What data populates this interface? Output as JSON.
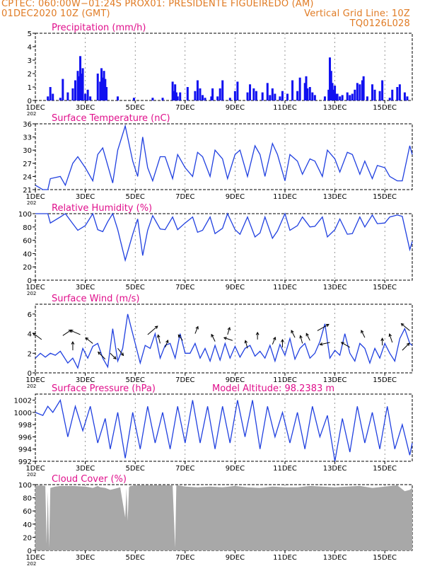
{
  "header": {
    "line1_left": "CPTEC:   060:00W−01:24S   PROX01: PRESIDENTE FIGUEIREDO (AM)",
    "line2_left": "01DEC2020 10Z (GMT)",
    "line2_right": "Vertical Grid Line: 10Z",
    "line3_right": "TQ0126L028"
  },
  "colors": {
    "header": "#e07b24",
    "title": "#e0108c",
    "line": "#2040e0",
    "bar": "#1010f0",
    "cloud": "#a8a8a8"
  },
  "x_axis": {
    "tick_labels": [
      "1DEC",
      "3DEC",
      "5DEC",
      "7DEC",
      "9DEC",
      "11DEC",
      "13DEC",
      "15DEC"
    ],
    "tick_days": [
      1,
      3,
      5,
      7,
      9,
      11,
      13,
      15
    ],
    "range": [
      1,
      16.1
    ],
    "year_fragment": "202"
  },
  "chart_data": [
    {
      "type": "bar",
      "title": "Precipitation (mm/h)",
      "ylim": [
        0,
        5
      ],
      "yticks": [
        "0",
        "1",
        "2",
        "3",
        "4",
        "5"
      ],
      "x": [
        1.5,
        1.6,
        1.7,
        2.0,
        2.1,
        2.3,
        2.5,
        2.6,
        2.7,
        2.75,
        2.8,
        2.85,
        2.9,
        3.0,
        3.1,
        3.2,
        3.5,
        3.6,
        3.65,
        3.7,
        3.75,
        3.8,
        3.85,
        4.3,
        4.95,
        5.7,
        6.1,
        6.5,
        6.55,
        6.6,
        6.65,
        6.7,
        6.8,
        7.1,
        7.4,
        7.5,
        7.6,
        7.7,
        7.8,
        8.05,
        8.1,
        8.3,
        8.4,
        8.5,
        8.8,
        9.0,
        9.1,
        9.5,
        9.6,
        9.75,
        9.85,
        10.1,
        10.3,
        10.4,
        10.5,
        10.6,
        10.8,
        10.9,
        11.1,
        11.3,
        11.5,
        11.6,
        11.8,
        11.85,
        11.9,
        12.0,
        12.1,
        12.2,
        12.6,
        12.75,
        12.8,
        12.85,
        12.9,
        12.95,
        13.0,
        13.05,
        13.1,
        13.2,
        13.3,
        13.5,
        13.6,
        13.7,
        13.8,
        13.9,
        14.0,
        14.1,
        14.15,
        14.3,
        14.5,
        14.6,
        14.8,
        14.9,
        15.2,
        15.3,
        15.5,
        15.6,
        15.8,
        15.9
      ],
      "values": [
        0.3,
        1.0,
        0.5,
        0.2,
        1.6,
        0.6,
        0.9,
        1.5,
        2.2,
        1.8,
        3.3,
        2.0,
        2.4,
        0.5,
        0.8,
        0.3,
        2.0,
        1.4,
        2.4,
        1.7,
        2.2,
        1.6,
        1.0,
        0.3,
        0.2,
        0.2,
        0.2,
        1.4,
        0.7,
        1.2,
        0.6,
        0.3,
        0.6,
        1.0,
        0.7,
        1.5,
        0.9,
        0.4,
        0.2,
        0.3,
        0.9,
        0.3,
        0.9,
        1.5,
        0.2,
        0.7,
        1.4,
        0.6,
        1.2,
        0.9,
        0.7,
        0.6,
        1.3,
        0.4,
        0.9,
        0.5,
        0.3,
        0.7,
        0.5,
        1.5,
        0.7,
        1.7,
        1.3,
        1.8,
        0.9,
        1.0,
        0.6,
        0.4,
        0.3,
        0.8,
        3.2,
        2.2,
        1.3,
        0.8,
        1.1,
        0.5,
        0.5,
        0.3,
        0.4,
        0.6,
        0.4,
        0.5,
        0.8,
        1.3,
        1.2,
        1.5,
        1.8,
        0.3,
        1.2,
        0.8,
        0.7,
        1.5,
        0.2,
        0.8,
        1.0,
        1.2,
        0.6,
        0.3
      ]
    },
    {
      "type": "line",
      "title": "Surface Temperature (nC)",
      "ylim": [
        21,
        36
      ],
      "yticks": [
        "21",
        "24",
        "27",
        "30",
        "33",
        "36"
      ],
      "x": [
        1.0,
        1.3,
        1.5,
        1.6,
        2.0,
        2.2,
        2.5,
        2.7,
        3.0,
        3.3,
        3.5,
        3.7,
        3.9,
        4.1,
        4.3,
        4.6,
        4.9,
        5.1,
        5.3,
        5.5,
        5.7,
        6.0,
        6.2,
        6.5,
        6.7,
        7.0,
        7.3,
        7.5,
        7.7,
        8.0,
        8.2,
        8.5,
        8.7,
        9.0,
        9.2,
        9.5,
        9.8,
        10.0,
        10.2,
        10.5,
        10.7,
        11.0,
        11.2,
        11.5,
        11.7,
        12.0,
        12.2,
        12.5,
        12.7,
        13.0,
        13.2,
        13.5,
        13.7,
        14.0,
        14.2,
        14.5,
        14.7,
        15.0,
        15.2,
        15.5,
        15.7,
        16.0,
        16.1
      ],
      "values": [
        22.0,
        21.0,
        21.0,
        23.5,
        24.0,
        22.0,
        27.0,
        28.5,
        26.0,
        23.0,
        29.0,
        30.5,
        26.5,
        22.5,
        30.0,
        35.5,
        27.5,
        24.0,
        33.0,
        26.0,
        23.0,
        28.5,
        28.5,
        23.5,
        29.0,
        26.0,
        24.0,
        29.5,
        28.5,
        24.0,
        30.0,
        28.0,
        23.5,
        29.0,
        30.0,
        24.0,
        31.0,
        29.0,
        24.0,
        31.5,
        29.0,
        23.0,
        29.0,
        27.5,
        24.5,
        28.0,
        27.5,
        24.0,
        30.0,
        28.0,
        25.0,
        29.5,
        29.0,
        24.5,
        27.5,
        23.5,
        26.5,
        26.0,
        24.0,
        23.0,
        23.0,
        31.0,
        29.0
      ]
    },
    {
      "type": "line",
      "title": "Relative Humidity (%)",
      "ylim": [
        0,
        100
      ],
      "yticks": [
        "0",
        "20",
        "40",
        "60",
        "80",
        "100"
      ],
      "x": [
        1.0,
        1.3,
        1.5,
        1.6,
        2.0,
        2.2,
        2.5,
        2.7,
        3.0,
        3.3,
        3.5,
        3.7,
        3.9,
        4.1,
        4.3,
        4.6,
        4.9,
        5.1,
        5.3,
        5.5,
        5.7,
        6.0,
        6.2,
        6.5,
        6.7,
        7.0,
        7.3,
        7.5,
        7.7,
        8.0,
        8.2,
        8.5,
        8.7,
        9.0,
        9.2,
        9.5,
        9.8,
        10.0,
        10.2,
        10.5,
        10.7,
        11.0,
        11.2,
        11.5,
        11.7,
        12.0,
        12.2,
        12.5,
        12.7,
        13.0,
        13.2,
        13.5,
        13.7,
        14.0,
        14.2,
        14.5,
        14.7,
        15.0,
        15.2,
        15.5,
        15.7,
        16.0,
        16.1
      ],
      "values": [
        100,
        100,
        100,
        86,
        95,
        100,
        85,
        75,
        82,
        100,
        76,
        73,
        88,
        100,
        76,
        30,
        69,
        92,
        37,
        75,
        97,
        77,
        76,
        95,
        76,
        86,
        95,
        72,
        75,
        95,
        70,
        78,
        100,
        76,
        69,
        95,
        65,
        71,
        95,
        63,
        74,
        100,
        75,
        82,
        95,
        80,
        81,
        95,
        65,
        76,
        92,
        69,
        70,
        95,
        80,
        98,
        85,
        86,
        95,
        98,
        96,
        46,
        58
      ]
    },
    {
      "type": "line",
      "title": "Surface Wind (m/s)",
      "ylim": [
        0,
        7
      ],
      "yticks": [
        "0",
        "2",
        "4",
        "6"
      ],
      "x": [
        1.0,
        1.2,
        1.4,
        1.6,
        1.8,
        2.0,
        2.3,
        2.5,
        2.7,
        2.9,
        3.1,
        3.3,
        3.5,
        3.7,
        3.9,
        4.1,
        4.3,
        4.5,
        4.7,
        4.8,
        5.0,
        5.2,
        5.4,
        5.6,
        5.8,
        6.0,
        6.2,
        6.4,
        6.6,
        6.8,
        7.0,
        7.2,
        7.4,
        7.6,
        7.8,
        8.0,
        8.2,
        8.4,
        8.6,
        8.8,
        9.0,
        9.2,
        9.4,
        9.6,
        9.8,
        10.0,
        10.2,
        10.4,
        10.6,
        10.8,
        11.0,
        11.2,
        11.4,
        11.6,
        11.8,
        12.0,
        12.2,
        12.4,
        12.6,
        12.8,
        13.0,
        13.2,
        13.4,
        13.6,
        13.8,
        14.0,
        14.2,
        14.4,
        14.6,
        14.8,
        15.0,
        15.2,
        15.4,
        15.6,
        15.8,
        16.0,
        16.1
      ],
      "values": [
        1.5,
        2.0,
        1.6,
        2.0,
        1.8,
        2.2,
        1.0,
        1.5,
        0.5,
        2.5,
        1.5,
        2.7,
        3.0,
        1.5,
        0.6,
        4.5,
        1.2,
        2.5,
        6.0,
        5.0,
        3.0,
        1.0,
        2.8,
        2.5,
        4.0,
        1.5,
        2.8,
        3.0,
        1.5,
        4.0,
        2.0,
        2.0,
        3.0,
        1.5,
        2.5,
        1.2,
        2.8,
        1.3,
        3.0,
        1.5,
        2.7,
        1.6,
        2.5,
        2.8,
        1.7,
        2.2,
        1.5,
        2.8,
        1.2,
        2.9,
        1.8,
        3.5,
        1.4,
        2.5,
        3.0,
        1.5,
        2.0,
        3.2,
        5.0,
        1.5,
        2.3,
        1.8,
        4.0,
        2.0,
        1.2,
        3.0,
        2.5,
        1.0,
        2.5,
        1.5,
        3.0,
        2.0,
        1.2,
        3.5,
        4.5,
        3.0,
        2.8
      ]
    },
    {
      "type": "line",
      "title": "Surface Pressure (hPa)",
      "annotation": "Model Altitude: 98.2383 m",
      "ylim": [
        992,
        1003
      ],
      "yticks": [
        "992",
        "994",
        "996",
        "998",
        "1000",
        "1002"
      ],
      "x": [
        1.0,
        1.3,
        1.5,
        1.7,
        2.0,
        2.3,
        2.6,
        2.9,
        3.2,
        3.5,
        3.8,
        4.0,
        4.3,
        4.6,
        4.9,
        5.2,
        5.5,
        5.8,
        6.1,
        6.4,
        6.7,
        7.0,
        7.3,
        7.6,
        7.9,
        8.2,
        8.5,
        8.8,
        9.1,
        9.4,
        9.7,
        10.0,
        10.3,
        10.6,
        10.9,
        11.2,
        11.5,
        11.8,
        12.1,
        12.4,
        12.7,
        13.0,
        13.3,
        13.6,
        13.9,
        14.2,
        14.5,
        14.8,
        15.1,
        15.4,
        15.7,
        16.0,
        16.1
      ],
      "values": [
        1000,
        999.5,
        1001,
        1000,
        1002,
        996,
        1001,
        997,
        1001,
        995,
        999,
        994,
        1000,
        992.5,
        1000,
        994,
        1001,
        995,
        1000,
        994,
        1001,
        995,
        1002,
        995,
        1001,
        994,
        1001,
        995,
        1002,
        996,
        1002,
        994,
        1001,
        996,
        1000,
        995,
        1000,
        994,
        1001,
        996,
        999.5,
        992,
        999,
        993.5,
        1001,
        995,
        1000,
        994,
        1001,
        994,
        998,
        993,
        995
      ]
    },
    {
      "type": "area",
      "title": "Cloud Cover (%)",
      "ylim": [
        0,
        100
      ],
      "yticks": [
        "0",
        "20",
        "40",
        "60",
        "80",
        "100"
      ],
      "x": [
        1.0,
        1.2,
        1.4,
        1.45,
        1.5,
        1.55,
        1.6,
        1.8,
        2.0,
        2.5,
        3.0,
        3.3,
        3.5,
        3.6,
        3.8,
        4.0,
        4.2,
        4.4,
        4.6,
        4.65,
        4.7,
        4.75,
        4.8,
        5.0,
        5.5,
        6.0,
        6.5,
        6.6,
        6.65,
        6.7,
        7.0,
        7.5,
        8.0,
        8.5,
        9.0,
        9.5,
        10.0,
        10.5,
        11.0,
        11.5,
        12.0,
        12.5,
        13.0,
        13.5,
        14.0,
        14.5,
        15.0,
        15.5,
        15.8,
        16.0,
        16.1
      ],
      "values": [
        98,
        99,
        98,
        10,
        90,
        4,
        95,
        97,
        98,
        98,
        97,
        95,
        98,
        96,
        95,
        92,
        94,
        96,
        50,
        95,
        45,
        96,
        98,
        99,
        99,
        99,
        99,
        4,
        99,
        99,
        97,
        96,
        97,
        96,
        98,
        96,
        95,
        97,
        96,
        96,
        98,
        97,
        96,
        97,
        98,
        95,
        97,
        99,
        90,
        92,
        95
      ]
    }
  ]
}
